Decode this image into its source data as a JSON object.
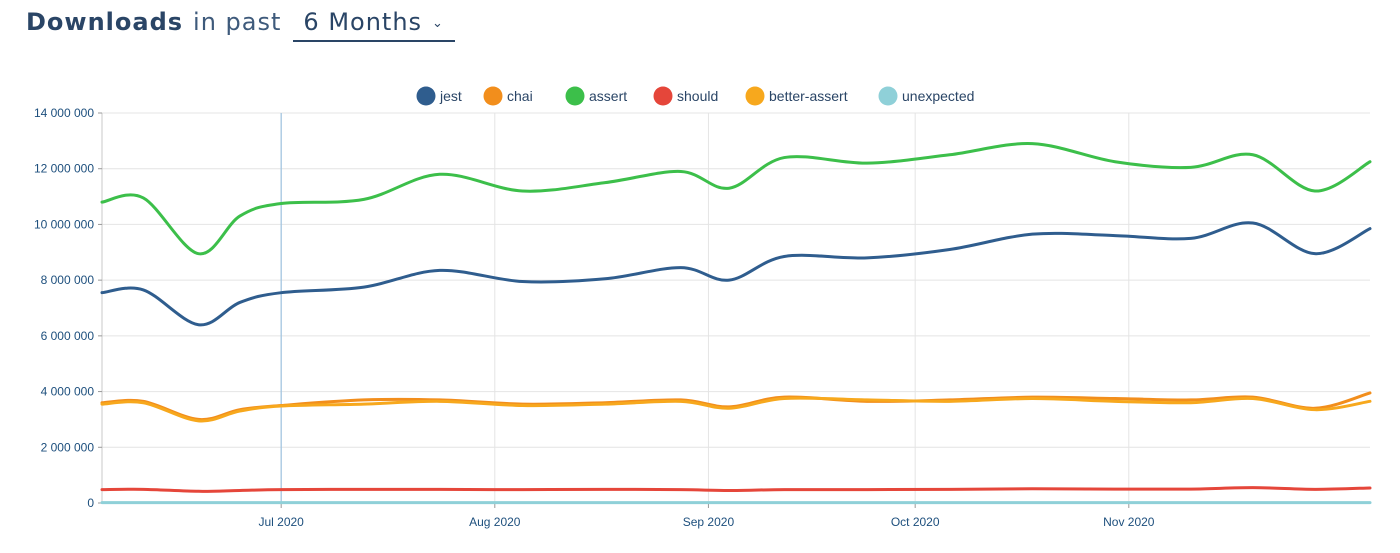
{
  "header": {
    "title_strong": "Downloads",
    "title_light": "in past",
    "period": {
      "selected": "6 Months",
      "chevron_icon": "chevron-down-icon"
    }
  },
  "chart_data": {
    "type": "line",
    "x_tick_labels": [
      "Jul 2020",
      "Aug 2020",
      "Sep 2020",
      "Oct 2020",
      "Nov 2020"
    ],
    "x_tick_dates": [
      "2020-07-01",
      "2020-08-01",
      "2020-09-01",
      "2020-10-01",
      "2020-11-01"
    ],
    "xlim": [
      "2020-06-05",
      "2020-12-06"
    ],
    "ylim": [
      0,
      14000000
    ],
    "y_tick_values": [
      0,
      2000000,
      4000000,
      6000000,
      8000000,
      10000000,
      12000000,
      14000000
    ],
    "y_tick_labels": [
      "0",
      "2 000 000",
      "4 000 000",
      "6 000 000",
      "8 000 000",
      "10 000 000",
      "12 000 000",
      "14 000 000"
    ],
    "grid": true,
    "legend_position": "top-center",
    "highlight_date": "2020-07-01",
    "x": [
      "2020-06-05",
      "2020-06-11",
      "2020-06-19",
      "2020-06-25",
      "2020-07-01",
      "2020-07-13",
      "2020-07-24",
      "2020-08-05",
      "2020-08-17",
      "2020-08-28",
      "2020-09-04",
      "2020-09-12",
      "2020-09-24",
      "2020-10-06",
      "2020-10-18",
      "2020-10-30",
      "2020-11-10",
      "2020-11-19",
      "2020-11-28",
      "2020-12-06"
    ],
    "series": [
      {
        "name": "jest",
        "color": "#2f5d8e",
        "values": [
          7550000,
          7650000,
          6400000,
          7200000,
          7550000,
          7750000,
          8350000,
          7950000,
          8050000,
          8450000,
          8000000,
          8850000,
          8800000,
          9100000,
          9650000,
          9600000,
          9500000,
          10050000,
          8950000,
          9850000
        ]
      },
      {
        "name": "chai",
        "color": "#f28e1c",
        "values": [
          3600000,
          3650000,
          3000000,
          3350000,
          3500000,
          3700000,
          3700000,
          3550000,
          3600000,
          3700000,
          3450000,
          3800000,
          3650000,
          3700000,
          3800000,
          3750000,
          3700000,
          3800000,
          3400000,
          3950000
        ]
      },
      {
        "name": "assert",
        "color": "#3cbf4a",
        "values": [
          10800000,
          10950000,
          8950000,
          10300000,
          10750000,
          10900000,
          11800000,
          11200000,
          11500000,
          11900000,
          11300000,
          12400000,
          12200000,
          12500000,
          12900000,
          12250000,
          12050000,
          12500000,
          11200000,
          12250000
        ]
      },
      {
        "name": "should",
        "color": "#e5463a",
        "values": [
          480000,
          490000,
          420000,
          450000,
          480000,
          490000,
          490000,
          480000,
          490000,
          480000,
          450000,
          480000,
          480000,
          490000,
          510000,
          500000,
          500000,
          550000,
          490000,
          540000
        ]
      },
      {
        "name": "better-assert",
        "color": "#f7a81d",
        "values": [
          3550000,
          3600000,
          2950000,
          3300000,
          3480000,
          3550000,
          3650000,
          3500000,
          3550000,
          3650000,
          3400000,
          3750000,
          3700000,
          3650000,
          3750000,
          3650000,
          3600000,
          3750000,
          3350000,
          3650000
        ]
      },
      {
        "name": "unexpected",
        "color": "#8fd0d8",
        "values": [
          15000,
          15000,
          15000,
          15000,
          15000,
          15000,
          15000,
          15000,
          15000,
          15000,
          15000,
          15000,
          15000,
          15000,
          15000,
          15000,
          15000,
          15000,
          15000,
          15000
        ]
      }
    ]
  }
}
